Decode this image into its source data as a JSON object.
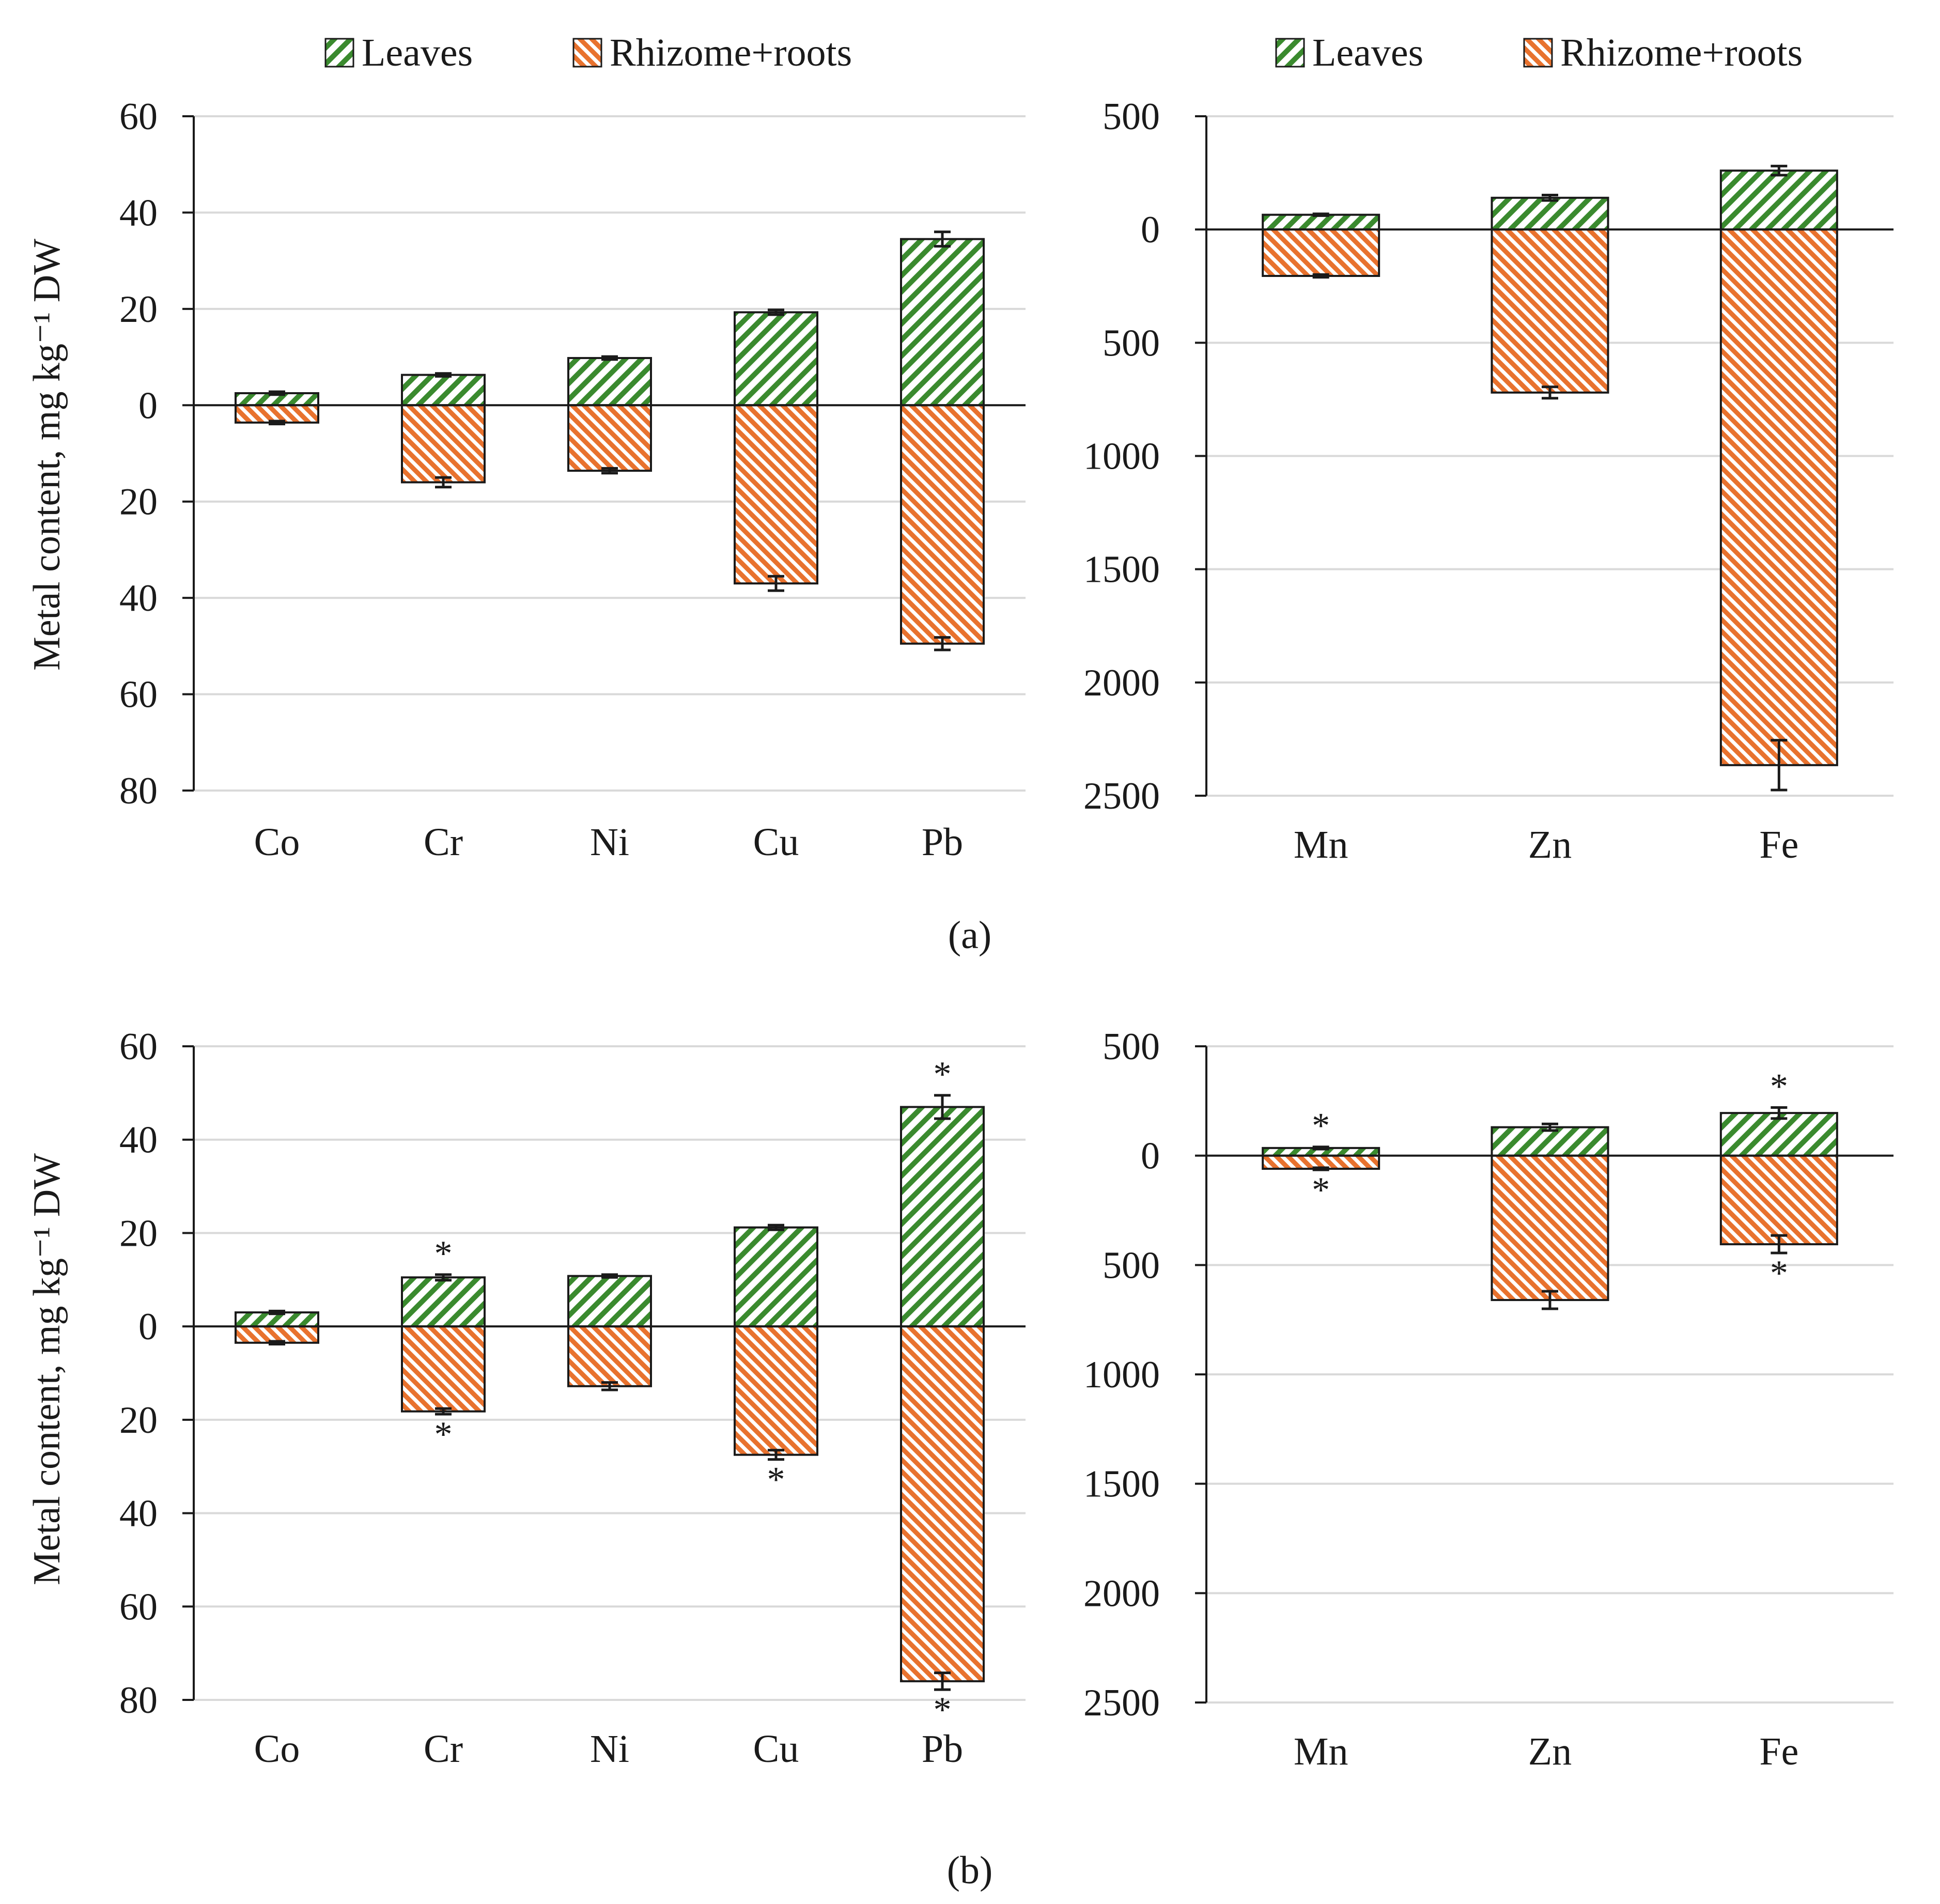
{
  "figure": {
    "panel_labels": [
      "(a)",
      "(b)"
    ],
    "y_axis_label": "Metal content, mg kg⁻¹ DW"
  },
  "legend": {
    "series": [
      {
        "name": "Leaves",
        "color": "#3a8a2e",
        "key": "leaves"
      },
      {
        "name": "Rhizome+roots",
        "color": "#e8722e",
        "key": "roots"
      }
    ]
  },
  "chart_data": [
    {
      "id": "a-left",
      "panel": "a",
      "type": "bar",
      "title": "",
      "xlabel": "",
      "ylabel": "Metal content, mg kg⁻¹ DW",
      "ylim": [
        -80,
        60
      ],
      "yticks": [
        60,
        40,
        20,
        0,
        -20,
        -40,
        -60,
        -80
      ],
      "ytick_labels": [
        "60",
        "40",
        "20",
        "0",
        "20",
        "40",
        "60",
        "80"
      ],
      "categories": [
        "Co",
        "Cr",
        "Ni",
        "Cu",
        "Pb"
      ],
      "series": [
        {
          "name": "Leaves",
          "values": [
            2.5,
            6.3,
            9.8,
            19.3,
            34.5
          ],
          "errors": [
            0.3,
            0.3,
            0.3,
            0.5,
            1.5
          ],
          "significant": [
            false,
            false,
            false,
            false,
            false
          ]
        },
        {
          "name": "Rhizome+roots",
          "values": [
            -3.6,
            -16,
            -13.6,
            -37,
            -49.5
          ],
          "errors": [
            0.3,
            1.0,
            0.5,
            1.5,
            1.3
          ],
          "significant": [
            false,
            false,
            false,
            false,
            false
          ]
        }
      ],
      "grid": true,
      "legend": "top-center"
    },
    {
      "id": "a-right",
      "panel": "a",
      "type": "bar",
      "title": "",
      "xlabel": "",
      "ylabel": "",
      "ylim": [
        -2500,
        500
      ],
      "yticks": [
        500,
        0,
        -500,
        -1000,
        -1500,
        -2000,
        -2500
      ],
      "ytick_labels": [
        "500",
        "0",
        "500",
        "1000",
        "1500",
        "2000",
        "2500"
      ],
      "categories": [
        "Mn",
        "Zn",
        "Fe"
      ],
      "series": [
        {
          "name": "Leaves",
          "values": [
            65,
            140,
            260
          ],
          "errors": [
            4,
            12,
            20
          ],
          "significant": [
            false,
            false,
            false
          ]
        },
        {
          "name": "Rhizome+roots",
          "values": [
            -205,
            -720,
            -2365
          ],
          "errors": [
            6,
            25,
            110
          ],
          "significant": [
            false,
            false,
            false
          ]
        }
      ],
      "grid": true,
      "legend": "top-center"
    },
    {
      "id": "b-left",
      "panel": "b",
      "type": "bar",
      "title": "",
      "xlabel": "",
      "ylabel": "Metal content, mg kg⁻¹ DW",
      "ylim": [
        -80,
        60
      ],
      "yticks": [
        60,
        40,
        20,
        0,
        -20,
        -40,
        -60,
        -80
      ],
      "ytick_labels": [
        "60",
        "40",
        "20",
        "0",
        "20",
        "40",
        "60",
        "80"
      ],
      "categories": [
        "Co",
        "Cr",
        "Ni",
        "Cu",
        "Pb"
      ],
      "series": [
        {
          "name": "Leaves",
          "values": [
            3,
            10.5,
            10.8,
            21.2,
            47
          ],
          "errors": [
            0.3,
            0.6,
            0.3,
            0.5,
            2.5
          ],
          "significant": [
            false,
            true,
            false,
            false,
            true
          ]
        },
        {
          "name": "Rhizome+roots",
          "values": [
            -3.5,
            -18.2,
            -12.8,
            -27.5,
            -76
          ],
          "errors": [
            0.3,
            0.6,
            0.8,
            1.0,
            1.8
          ],
          "significant": [
            false,
            true,
            false,
            true,
            true
          ]
        }
      ],
      "grid": true,
      "legend": "none"
    },
    {
      "id": "b-right",
      "panel": "b",
      "type": "bar",
      "title": "",
      "xlabel": "",
      "ylabel": "",
      "ylim": [
        -2500,
        500
      ],
      "yticks": [
        500,
        0,
        -500,
        -1000,
        -1500,
        -2000,
        -2500
      ],
      "ytick_labels": [
        "500",
        "0",
        "500",
        "1000",
        "1500",
        "2000",
        "2500"
      ],
      "categories": [
        "Mn",
        "Zn",
        "Fe"
      ],
      "series": [
        {
          "name": "Leaves",
          "values": [
            35,
            130,
            195
          ],
          "errors": [
            5,
            15,
            25
          ],
          "significant": [
            true,
            false,
            true
          ]
        },
        {
          "name": "Rhizome+roots",
          "values": [
            -60,
            -660,
            -405
          ],
          "errors": [
            5,
            40,
            40
          ],
          "significant": [
            true,
            false,
            true
          ]
        }
      ],
      "grid": true,
      "legend": "none"
    }
  ],
  "significance_marker": "*"
}
